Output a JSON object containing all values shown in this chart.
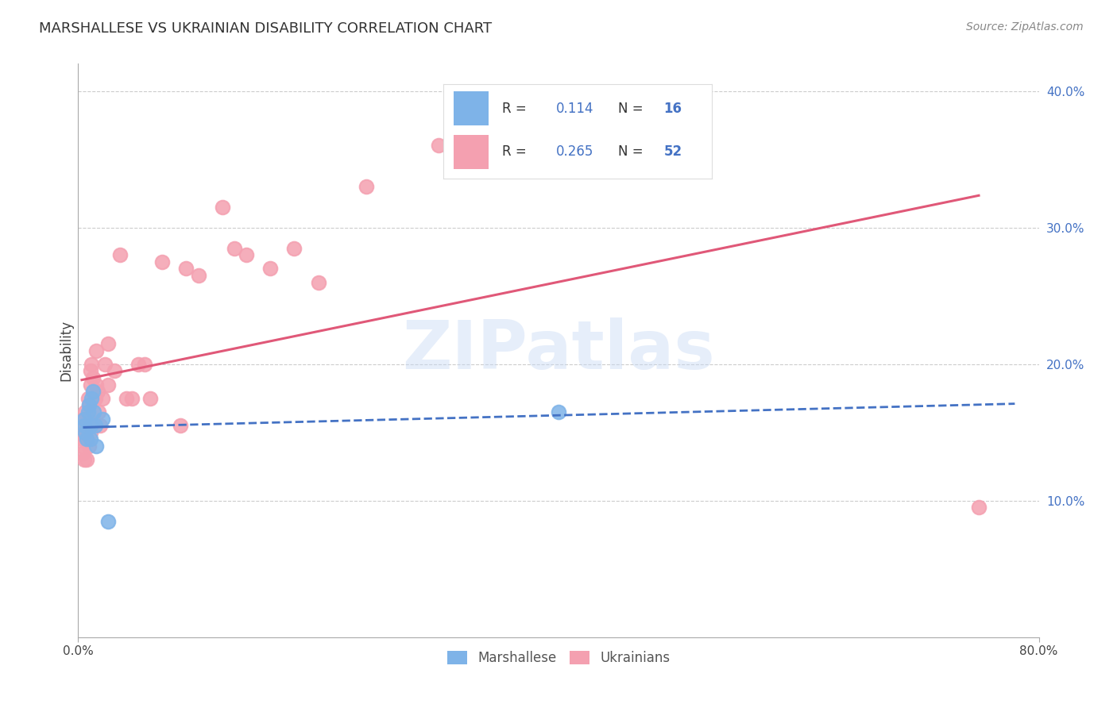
{
  "title": "MARSHALLESE VS UKRAINIAN DISABILITY CORRELATION CHART",
  "source": "Source: ZipAtlas.com",
  "ylabel": "Disability",
  "watermark": "ZIPatlas",
  "xlim": [
    0.0,
    0.8
  ],
  "ylim": [
    0.0,
    0.42
  ],
  "yticks": [
    0.1,
    0.2,
    0.3,
    0.4
  ],
  "ytick_labels": [
    "10.0%",
    "20.0%",
    "30.0%",
    "40.0%"
  ],
  "grid_color": "#cccccc",
  "background_color": "#ffffff",
  "marshallese_color": "#7eb3e8",
  "ukrainian_color": "#f4a0b0",
  "marshallese_line_color": "#4472c4",
  "ukrainian_line_color": "#e05878",
  "legend_R1": "0.114",
  "legend_N1": "16",
  "legend_R2": "0.265",
  "legend_N2": "52",
  "marshallese_x": [
    0.005,
    0.005,
    0.006,
    0.007,
    0.008,
    0.009,
    0.01,
    0.01,
    0.011,
    0.012,
    0.013,
    0.014,
    0.015,
    0.02,
    0.025,
    0.4
  ],
  "marshallese_y": [
    0.155,
    0.16,
    0.15,
    0.145,
    0.165,
    0.17,
    0.155,
    0.145,
    0.175,
    0.18,
    0.165,
    0.155,
    0.14,
    0.16,
    0.085,
    0.165
  ],
  "ukrainian_x": [
    0.003,
    0.003,
    0.004,
    0.004,
    0.004,
    0.005,
    0.005,
    0.005,
    0.006,
    0.007,
    0.007,
    0.008,
    0.008,
    0.009,
    0.009,
    0.01,
    0.01,
    0.01,
    0.011,
    0.012,
    0.013,
    0.014,
    0.015,
    0.015,
    0.016,
    0.017,
    0.018,
    0.02,
    0.022,
    0.025,
    0.025,
    0.03,
    0.035,
    0.04,
    0.045,
    0.05,
    0.055,
    0.06,
    0.07,
    0.085,
    0.09,
    0.1,
    0.12,
    0.13,
    0.14,
    0.16,
    0.18,
    0.2,
    0.24,
    0.3,
    0.38,
    0.75
  ],
  "ukrainian_y": [
    0.15,
    0.14,
    0.155,
    0.145,
    0.135,
    0.16,
    0.15,
    0.13,
    0.165,
    0.155,
    0.13,
    0.175,
    0.16,
    0.17,
    0.14,
    0.195,
    0.185,
    0.15,
    0.2,
    0.19,
    0.175,
    0.175,
    0.21,
    0.185,
    0.18,
    0.165,
    0.155,
    0.175,
    0.2,
    0.215,
    0.185,
    0.195,
    0.28,
    0.175,
    0.175,
    0.2,
    0.2,
    0.175,
    0.275,
    0.155,
    0.27,
    0.265,
    0.315,
    0.285,
    0.28,
    0.27,
    0.285,
    0.26,
    0.33,
    0.36,
    0.375,
    0.095
  ]
}
